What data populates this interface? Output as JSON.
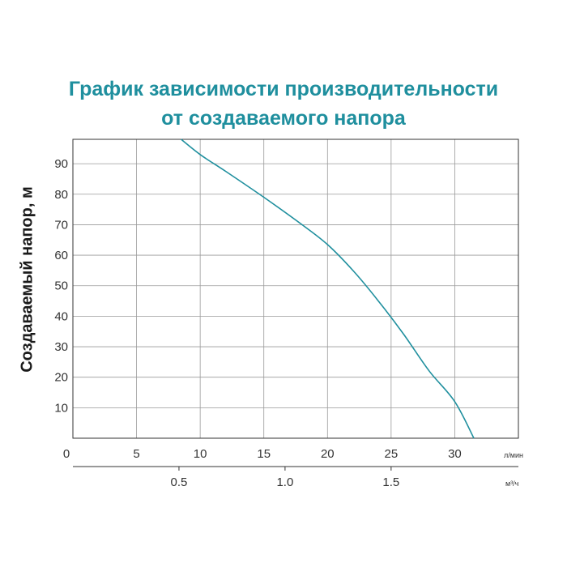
{
  "chart_data": {
    "type": "line",
    "title_lines": [
      "График зависимости производительности",
      "от создаваемого напора"
    ],
    "ylabel": "Создаваемый напор, м",
    "x_unit_lpm": "л/мин",
    "x_unit_m3h": "м³/ч",
    "xlim": [
      0,
      35
    ],
    "ylim": [
      0,
      98
    ],
    "x_ticks": [
      0,
      5,
      10,
      15,
      20,
      25,
      30
    ],
    "x_tick_labels": [
      "0",
      "5",
      "10",
      "15",
      "20",
      "25",
      "30"
    ],
    "x2_ticks": [
      0.5,
      1.0,
      1.5
    ],
    "x2_tick_labels": [
      "0.5",
      "1.0",
      "1.5"
    ],
    "y_ticks": [
      10,
      20,
      30,
      40,
      50,
      60,
      70,
      80,
      90
    ],
    "y_tick_labels": [
      "10",
      "20",
      "30",
      "40",
      "50",
      "60",
      "70",
      "80",
      "90"
    ],
    "grid": true,
    "line_color": "#1f8f9e",
    "title_color": "#1f8f9e",
    "series": [
      {
        "x": [
          8.5,
          10,
          12,
          15,
          18,
          20,
          22,
          24,
          26,
          28,
          30,
          31.5
        ],
        "y": [
          98,
          93,
          87.5,
          79,
          70,
          63.5,
          55,
          45,
          34,
          22,
          12,
          0
        ]
      }
    ]
  }
}
